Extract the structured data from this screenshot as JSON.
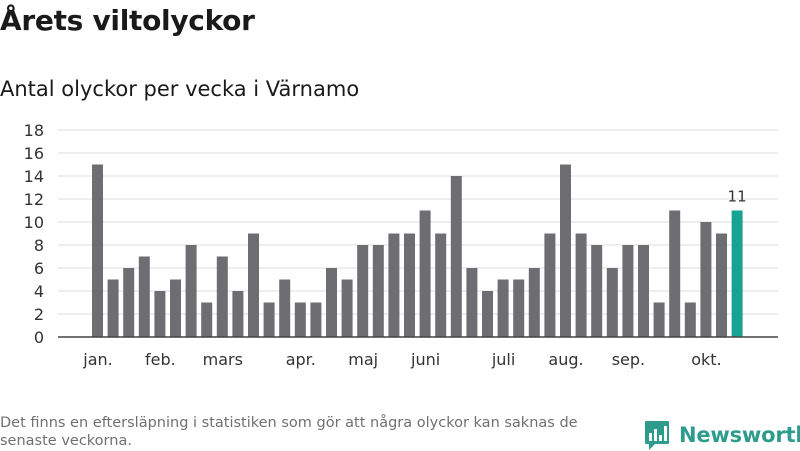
{
  "title": "Årets viltolyckor",
  "subtitle": "Antal olyckor per vecka i Värnamo",
  "footnote": "Det finns en eftersläpning i statistiken som gör att några olyckor kan saknas de senaste veckorna.",
  "brand": {
    "name": "Newsworthy",
    "icon": "newsworthy-logo-icon",
    "color": "#2e9c8c"
  },
  "chart_data": {
    "type": "bar",
    "ylim": [
      0,
      18
    ],
    "yticks": [
      0,
      2,
      4,
      6,
      8,
      10,
      12,
      14,
      16,
      18
    ],
    "grid": true,
    "values": [
      15,
      5,
      6,
      7,
      4,
      5,
      8,
      3,
      7,
      4,
      9,
      3,
      5,
      3,
      3,
      6,
      5,
      8,
      8,
      9,
      9,
      11,
      9,
      14,
      6,
      4,
      5,
      5,
      6,
      9,
      15,
      9,
      8,
      6,
      8,
      8,
      3,
      11,
      3,
      10,
      9,
      11
    ],
    "month_labels": [
      {
        "label": "jan.",
        "bar": 0.5
      },
      {
        "label": "feb.",
        "bar": 4.5
      },
      {
        "label": "mars",
        "bar": 8.5
      },
      {
        "label": "apr.",
        "bar": 13.5
      },
      {
        "label": "maj",
        "bar": 17.5
      },
      {
        "label": "juni",
        "bar": 21.5
      },
      {
        "label": "juli",
        "bar": 26.5
      },
      {
        "label": "aug.",
        "bar": 30.5
      },
      {
        "label": "sep.",
        "bar": 34.5
      },
      {
        "label": "okt.",
        "bar": 39.5
      }
    ],
    "highlight_label": "11",
    "colors": {
      "bar": "#6e6d72",
      "highlight": "#16a394",
      "grid": "#dcdcdc",
      "baseline": "#444444"
    }
  }
}
